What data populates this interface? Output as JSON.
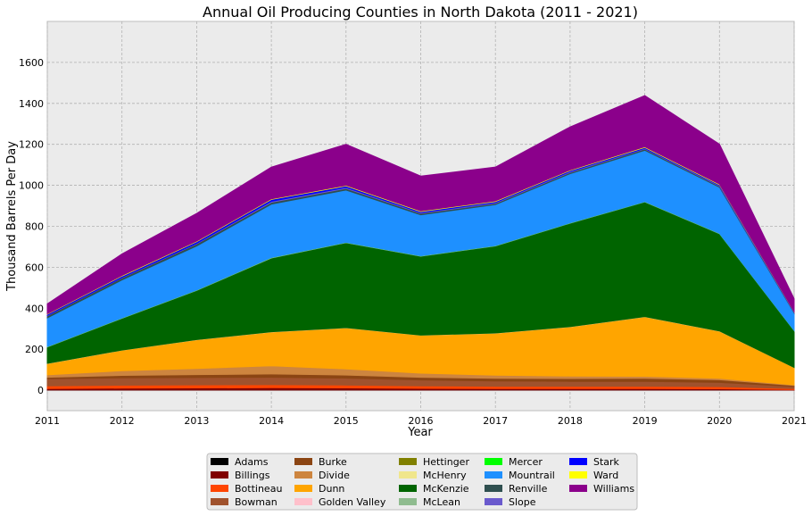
{
  "chart_data": {
    "type": "area",
    "stacked": true,
    "title": "Annual Oil Producing Counties in North Dakota (2011 - 2021)",
    "xlabel": "Year",
    "ylabel": "Thousand Barrels Per Day",
    "x": [
      2011,
      2012,
      2013,
      2014,
      2015,
      2016,
      2017,
      2018,
      2019,
      2020,
      2021
    ],
    "xlim": [
      2011,
      2021
    ],
    "ylim": [
      -100,
      1800
    ],
    "yticks": [
      0,
      200,
      400,
      600,
      800,
      1000,
      1200,
      1400,
      1600
    ],
    "grid": true,
    "legend_position": "bottom-center",
    "series": [
      {
        "name": "Adams",
        "color": "#000000",
        "values": [
          1,
          1,
          1,
          1,
          1,
          1,
          1,
          1,
          1,
          1,
          0
        ]
      },
      {
        "name": "Billings",
        "color": "#800000",
        "values": [
          7,
          9,
          10,
          11,
          10,
          8,
          7,
          7,
          7,
          6,
          3
        ]
      },
      {
        "name": "Bottineau",
        "color": "#FF4500",
        "values": [
          13,
          14,
          15,
          15,
          14,
          12,
          11,
          11,
          11,
          10,
          5
        ]
      },
      {
        "name": "Bowman",
        "color": "#A0522D",
        "values": [
          35,
          36,
          36,
          36,
          34,
          29,
          26,
          24,
          24,
          21,
          10
        ]
      },
      {
        "name": "Burke",
        "color": "#8B4513",
        "values": [
          7,
          12,
          14,
          16,
          15,
          13,
          13,
          14,
          15,
          13,
          5
        ]
      },
      {
        "name": "Divide",
        "color": "#CD853F",
        "values": [
          12,
          23,
          30,
          40,
          30,
          20,
          15,
          12,
          10,
          7,
          3
        ]
      },
      {
        "name": "Dunn",
        "color": "#FFA500",
        "values": [
          55,
          100,
          140,
          165,
          200,
          185,
          205,
          240,
          290,
          230,
          85
        ]
      },
      {
        "name": "Golden Valley",
        "color": "#FFC0CB",
        "values": [
          1,
          1,
          1,
          1,
          1,
          1,
          1,
          1,
          1,
          1,
          0
        ]
      },
      {
        "name": "Hettinger",
        "color": "#808000",
        "values": [
          0,
          0,
          0,
          0,
          0,
          0,
          0,
          0,
          0,
          0,
          0
        ]
      },
      {
        "name": "McHenry",
        "color": "#F0E68C",
        "values": [
          0,
          0,
          0,
          0,
          0,
          0,
          0,
          0,
          0,
          0,
          0
        ]
      },
      {
        "name": "McKenzie",
        "color": "#006400",
        "values": [
          80,
          155,
          240,
          360,
          415,
          385,
          425,
          505,
          560,
          475,
          180
        ]
      },
      {
        "name": "McLean",
        "color": "#8FBC8F",
        "values": [
          2,
          2,
          2,
          3,
          2,
          2,
          2,
          2,
          2,
          2,
          1
        ]
      },
      {
        "name": "Mercer",
        "color": "#00FF00",
        "values": [
          0,
          0,
          0,
          0,
          0,
          0,
          0,
          0,
          0,
          0,
          0
        ]
      },
      {
        "name": "Mountrail",
        "color": "#1E90FF",
        "values": [
          140,
          185,
          215,
          260,
          255,
          200,
          200,
          240,
          250,
          225,
          85
        ]
      },
      {
        "name": "Renville",
        "color": "#2F4F4F",
        "values": [
          10,
          10,
          10,
          9,
          8,
          7,
          6,
          6,
          6,
          5,
          3
        ]
      },
      {
        "name": "Slope",
        "color": "#6A5ACD",
        "values": [
          2,
          2,
          3,
          5,
          5,
          4,
          4,
          4,
          3,
          3,
          1
        ]
      },
      {
        "name": "Stark",
        "color": "#0000FF",
        "values": [
          6,
          7,
          8,
          9,
          7,
          5,
          5,
          5,
          5,
          4,
          2
        ]
      },
      {
        "name": "Ward",
        "color": "#FFFF00",
        "values": [
          2,
          3,
          3,
          3,
          3,
          3,
          3,
          3,
          3,
          3,
          1
        ]
      },
      {
        "name": "Williams",
        "color": "#8B008B",
        "values": [
          48,
          105,
          135,
          155,
          200,
          170,
          165,
          210,
          250,
          195,
          62
        ]
      }
    ]
  }
}
